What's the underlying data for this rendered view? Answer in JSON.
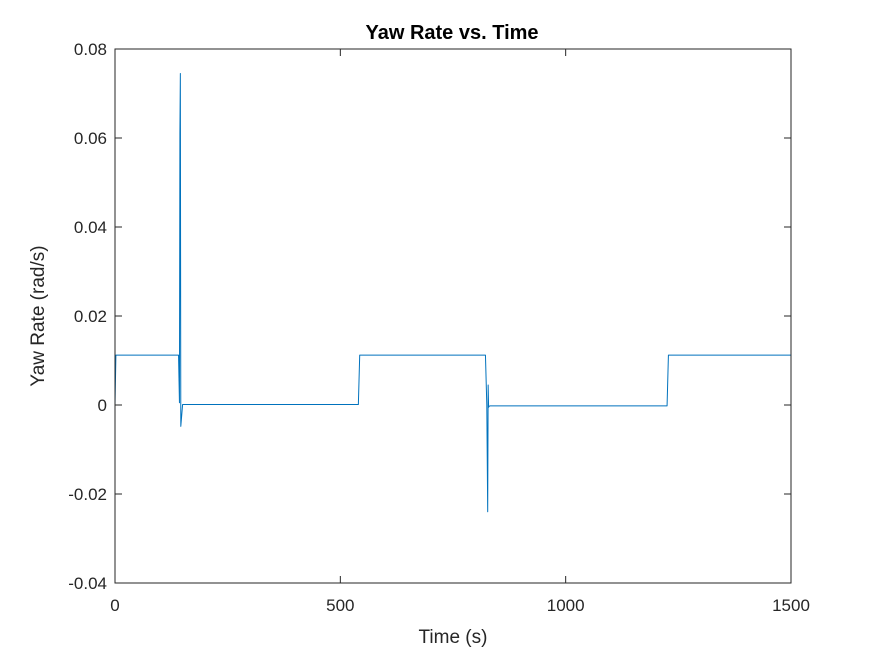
{
  "chart_data": {
    "type": "line",
    "title": "Yaw Rate vs. Time",
    "xlabel": "Time (s)",
    "ylabel": "Yaw Rate (rad/s)",
    "xlim": [
      0,
      1500
    ],
    "ylim": [
      -0.04,
      0.08
    ],
    "xticks": [
      0,
      500,
      1000,
      1500
    ],
    "xtick_labels": [
      "0",
      "500",
      "1000",
      "1500"
    ],
    "yticks": [
      -0.04,
      -0.02,
      0,
      0.02,
      0.04,
      0.06,
      0.08
    ],
    "ytick_labels": [
      "-0.04",
      "-0.02",
      "0",
      "0.02",
      "0.04",
      "0.06",
      "0.08"
    ],
    "grid": false,
    "series_color": "#0072BD",
    "series": [
      {
        "x": [
          0,
          2,
          140,
          141,
          143,
          144,
          145,
          146,
          150,
          540,
          543,
          545,
          822,
          825,
          827,
          828,
          829,
          830,
          832,
          1225,
          1228,
          1230,
          1500
        ],
        "y": [
          0.0,
          0.0112,
          0.0112,
          0.0112,
          0.0005,
          0.061,
          0.0745,
          -0.0048,
          0.0001,
          0.0001,
          0.0112,
          0.0112,
          0.0112,
          0.0,
          -0.024,
          0.0045,
          -0.0005,
          -0.0003,
          -0.0002,
          -0.0002,
          0.0112,
          0.0112,
          0.0112
        ]
      }
    ]
  }
}
